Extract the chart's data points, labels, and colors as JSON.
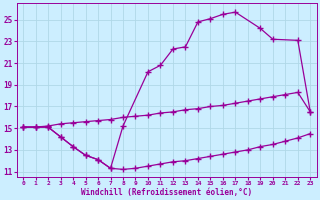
{
  "xlabel": "Windchill (Refroidissement éolien,°C)",
  "bg_color": "#cceeff",
  "grid_color": "#b0d8e8",
  "line_color": "#990099",
  "xlim": [
    -0.5,
    23.5
  ],
  "ylim": [
    10.5,
    26.5
  ],
  "xticks": [
    0,
    1,
    2,
    3,
    4,
    5,
    6,
    7,
    8,
    9,
    10,
    11,
    12,
    13,
    14,
    15,
    16,
    17,
    18,
    19,
    20,
    21,
    22,
    23
  ],
  "yticks": [
    11,
    13,
    15,
    17,
    19,
    21,
    23,
    25
  ],
  "curve_straight_x": [
    0,
    1,
    2,
    3,
    4,
    5,
    6,
    7,
    8,
    9,
    10,
    11,
    12,
    13,
    14,
    15,
    16,
    17,
    18,
    19,
    20,
    21,
    22,
    23
  ],
  "curve_straight_y": [
    15.1,
    15.1,
    15.2,
    15.4,
    15.5,
    15.6,
    15.7,
    15.8,
    16.0,
    16.1,
    16.2,
    16.4,
    16.5,
    16.7,
    16.8,
    17.0,
    17.1,
    17.3,
    17.5,
    17.7,
    17.9,
    18.1,
    18.3,
    16.5
  ],
  "curve_dip_x": [
    0,
    1,
    2,
    3,
    4,
    5,
    6,
    7,
    8,
    9,
    10,
    11,
    12,
    13,
    14,
    15,
    16,
    17,
    18,
    19,
    20,
    21,
    22,
    23
  ],
  "curve_dip_y": [
    15.1,
    15.1,
    15.1,
    14.2,
    13.3,
    12.5,
    12.1,
    11.3,
    11.2,
    11.3,
    11.5,
    11.7,
    11.9,
    12.0,
    12.2,
    12.4,
    12.6,
    12.8,
    13.0,
    13.3,
    13.5,
    13.8,
    14.1,
    14.5
  ],
  "curve_hump_x": [
    0,
    1,
    2,
    3,
    4,
    5,
    6,
    7,
    8,
    10,
    11,
    12,
    13,
    14,
    15,
    16,
    17,
    19,
    20,
    22,
    23
  ],
  "curve_hump_y": [
    15.1,
    15.1,
    15.1,
    14.2,
    13.3,
    12.5,
    12.1,
    11.3,
    15.2,
    20.2,
    20.8,
    22.3,
    22.5,
    24.8,
    25.1,
    25.5,
    25.7,
    24.2,
    23.2,
    23.1,
    16.5
  ]
}
